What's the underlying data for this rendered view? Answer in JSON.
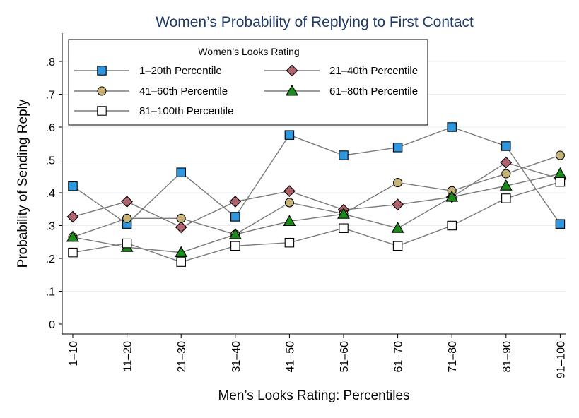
{
  "chart_data": {
    "type": "line",
    "title": "Women’s Probability of Replying to First Contact",
    "xlabel": "Men’s Looks Rating: Percentiles",
    "ylabel": "Probability of Sending Reply",
    "categories": [
      "1–10",
      "11–20",
      "21–30",
      "31–40",
      "41–50",
      "51–60",
      "61–70",
      "71–80",
      "81–90",
      "91–100"
    ],
    "ylim": [
      0,
      0.8
    ],
    "yticks": [
      {
        "value": 0,
        "label": "0"
      },
      {
        "value": 0.1,
        "label": ".1"
      },
      {
        "value": 0.2,
        "label": ".2"
      },
      {
        "value": 0.3,
        "label": ".3"
      },
      {
        "value": 0.4,
        "label": ".4"
      },
      {
        "value": 0.5,
        "label": ".5"
      },
      {
        "value": 0.6,
        "label": ".6"
      },
      {
        "value": 0.7,
        "label": ".7"
      },
      {
        "value": 0.8,
        "label": ".8"
      }
    ],
    "grid": true,
    "legend": {
      "title": "Women’s Looks Rating",
      "placement": "top-left"
    },
    "series": [
      {
        "name": "1–20th Percentile",
        "marker": "square",
        "color": "#2f96e0",
        "values": [
          0.42,
          0.305,
          0.462,
          0.327,
          0.576,
          0.514,
          0.538,
          0.6,
          0.542,
          0.305
        ]
      },
      {
        "name": "21–40th Percentile",
        "marker": "diamond",
        "color": "#b0636c",
        "values": [
          0.327,
          0.373,
          0.295,
          0.373,
          0.405,
          0.348,
          0.364,
          0.387,
          0.492,
          0.442
        ]
      },
      {
        "name": "41–60th Percentile",
        "marker": "circle",
        "color": "#c4b276",
        "values": [
          0.265,
          0.322,
          0.322,
          0.273,
          0.37,
          0.336,
          0.431,
          0.406,
          0.458,
          0.514
        ]
      },
      {
        "name": "61–80th Percentile",
        "marker": "triangle",
        "color": "#1a8a1a",
        "values": [
          0.265,
          0.234,
          0.218,
          0.273,
          0.313,
          0.335,
          0.292,
          0.387,
          0.421,
          0.458
        ]
      },
      {
        "name": "81–100th Percentile",
        "marker": "hollow-square",
        "color": "#ffffff",
        "values": [
          0.218,
          0.246,
          0.189,
          0.238,
          0.248,
          0.292,
          0.238,
          0.3,
          0.383,
          0.433
        ]
      }
    ]
  }
}
